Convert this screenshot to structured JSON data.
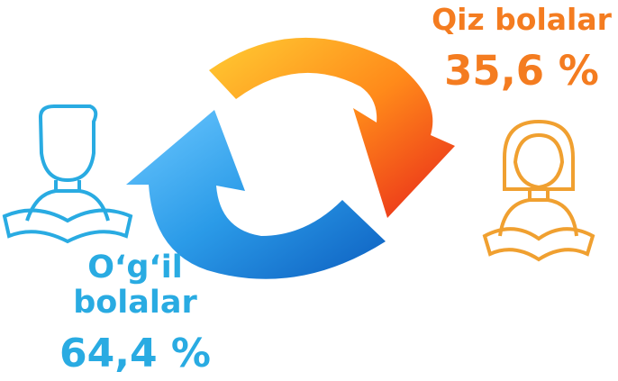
{
  "girls": {
    "label": "Qiz bolalar",
    "percent": "35,6 %"
  },
  "boys": {
    "label": "O‘g‘il bolalar",
    "percent": "64,4 %"
  }
}
